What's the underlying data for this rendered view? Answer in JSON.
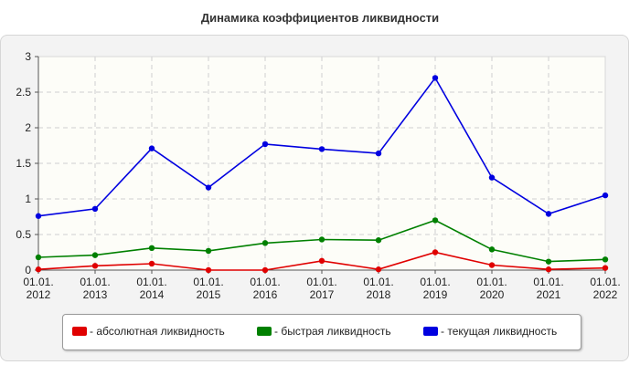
{
  "chart_data": {
    "type": "line",
    "title": "Динамика коэффициентов ликвидности",
    "xlabel": "",
    "ylabel": "",
    "categories": [
      [
        "01.01.",
        "2012"
      ],
      [
        "01.01.",
        "2013"
      ],
      [
        "01.01.",
        "2014"
      ],
      [
        "01.01.",
        "2015"
      ],
      [
        "01.01.",
        "2016"
      ],
      [
        "01.01.",
        "2017"
      ],
      [
        "01.01.",
        "2018"
      ],
      [
        "01.01.",
        "2019"
      ],
      [
        "01.01.",
        "2020"
      ],
      [
        "01.01.",
        "2021"
      ],
      [
        "01.01.",
        "2022"
      ]
    ],
    "ylim": [
      0,
      3
    ],
    "yticks": [
      "0",
      "0.5",
      "1",
      "1.5",
      "2",
      "2.5",
      "3"
    ],
    "grid": true,
    "legend_position": "bottom",
    "series": [
      {
        "name": "- абсолютная ликвидность",
        "color": "#e00000",
        "values": [
          0.01,
          0.06,
          0.09,
          0.0,
          0.0,
          0.13,
          0.01,
          0.25,
          0.07,
          0.01,
          0.03
        ]
      },
      {
        "name": "- быстрая ликвидность",
        "color": "#008000",
        "values": [
          0.18,
          0.21,
          0.31,
          0.27,
          0.38,
          0.43,
          0.42,
          0.7,
          0.29,
          0.12,
          0.15
        ]
      },
      {
        "name": "- текущая ликвидность",
        "color": "#0000e0",
        "values": [
          0.76,
          0.86,
          1.71,
          1.16,
          1.77,
          1.7,
          1.64,
          2.7,
          1.3,
          0.79,
          1.05
        ]
      }
    ]
  }
}
